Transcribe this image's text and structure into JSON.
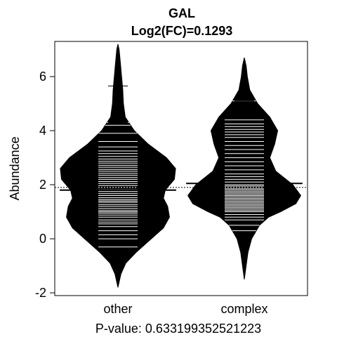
{
  "chart_data": {
    "type": "beanplot",
    "title": "GAL",
    "subtitle": "Log2(FC)=0.1293",
    "xlabel": "P-value: 0.633199352521223",
    "ylabel": "Abundance",
    "categories": [
      "other",
      "complex"
    ],
    "y_ticks": [
      "-2",
      "0",
      "2",
      "4",
      "6"
    ],
    "ylim": [
      -2.1,
      7.3
    ],
    "overall_mean": 1.9,
    "colors": {
      "bean_fill": "#000000",
      "points": "#ffffff",
      "axes": "#000000",
      "background": "#ffffff"
    },
    "beans": [
      {
        "name": "other",
        "mean": 1.8,
        "y_range": [
          -1.8,
          7.2
        ],
        "whisker_ticks": [
          4.3,
          5.65
        ],
        "density": [
          [
            -1.8,
            0.0
          ],
          [
            -1.3,
            0.05
          ],
          [
            -0.9,
            0.13
          ],
          [
            -0.5,
            0.3
          ],
          [
            0.0,
            0.55
          ],
          [
            0.4,
            0.75
          ],
          [
            0.8,
            0.85
          ],
          [
            1.2,
            0.82
          ],
          [
            1.5,
            0.75
          ],
          [
            1.8,
            0.78
          ],
          [
            2.2,
            0.93
          ],
          [
            2.6,
            0.95
          ],
          [
            3.0,
            0.8
          ],
          [
            3.5,
            0.5
          ],
          [
            4.0,
            0.27
          ],
          [
            4.5,
            0.12
          ],
          [
            5.0,
            0.09
          ],
          [
            5.5,
            0.08
          ],
          [
            6.0,
            0.06
          ],
          [
            6.5,
            0.04
          ],
          [
            7.0,
            0.02
          ],
          [
            7.2,
            0.0
          ]
        ],
        "observations": [
          -0.3,
          0.0,
          0.15,
          0.3,
          0.45,
          0.55,
          0.62,
          0.7,
          0.8,
          0.88,
          0.95,
          1.0,
          1.05,
          1.12,
          1.2,
          1.27,
          1.35,
          1.4,
          1.45,
          1.52,
          1.6,
          1.67,
          1.75,
          1.82,
          1.9,
          1.97,
          2.05,
          2.12,
          2.2,
          2.27,
          2.35,
          2.42,
          2.5,
          2.57,
          2.65,
          2.72,
          2.8,
          2.87,
          2.95,
          3.05,
          3.15,
          3.25,
          3.4,
          3.6,
          3.9,
          4.2,
          4.3,
          5.65
        ]
      },
      {
        "name": "complex",
        "mean": 2.05,
        "y_range": [
          -1.5,
          6.7
        ],
        "whisker_ticks": [
          5.1
        ],
        "density": [
          [
            -1.5,
            0.0
          ],
          [
            -1.0,
            0.03
          ],
          [
            -0.5,
            0.06
          ],
          [
            0.0,
            0.12
          ],
          [
            0.5,
            0.25
          ],
          [
            0.8,
            0.4
          ],
          [
            1.0,
            0.6
          ],
          [
            1.3,
            0.85
          ],
          [
            1.6,
            0.93
          ],
          [
            2.0,
            0.8
          ],
          [
            2.5,
            0.52
          ],
          [
            3.0,
            0.42
          ],
          [
            3.5,
            0.5
          ],
          [
            4.0,
            0.55
          ],
          [
            4.5,
            0.42
          ],
          [
            5.0,
            0.22
          ],
          [
            5.5,
            0.09
          ],
          [
            6.0,
            0.05
          ],
          [
            6.4,
            0.03
          ],
          [
            6.7,
            0.0
          ]
        ],
        "observations": [
          0.3,
          0.5,
          0.7,
          0.8,
          0.9,
          1.0,
          1.05,
          1.1,
          1.15,
          1.2,
          1.25,
          1.3,
          1.35,
          1.4,
          1.45,
          1.5,
          1.55,
          1.6,
          1.65,
          1.7,
          1.75,
          1.8,
          1.85,
          1.9,
          1.95,
          2.0,
          2.1,
          2.2,
          2.3,
          2.4,
          2.55,
          2.7,
          2.85,
          3.0,
          3.15,
          3.3,
          3.45,
          3.6,
          3.75,
          3.85,
          3.95,
          4.05,
          4.15,
          4.25,
          4.4,
          5.1
        ]
      }
    ],
    "grid": false,
    "legend": "none"
  }
}
